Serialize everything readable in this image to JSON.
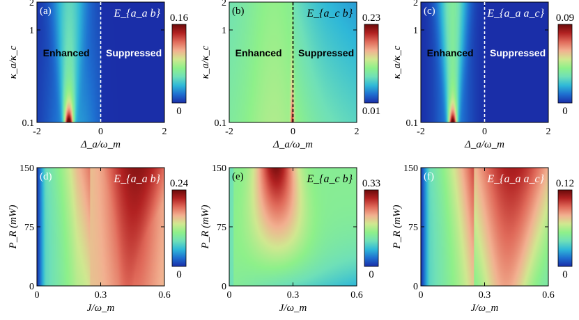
{
  "colormap": [
    "#1a2ea8",
    "#1e6fd0",
    "#2fb8d8",
    "#6fe0b8",
    "#8ef08a",
    "#d0e890",
    "#f2b090",
    "#e06a5a",
    "#b22222",
    "#6a0a0a"
  ],
  "chart_data": [
    {
      "id": "a",
      "type": "heatmap",
      "panel_label": "(a)",
      "title": "E_{a_a b}",
      "xlabel": "Δ_a/ω_m",
      "ylabel": "κ_a/κ_c",
      "xlim": [
        -2,
        2
      ],
      "ylim": [
        0.1,
        2
      ],
      "yscale": "log",
      "xticks": [
        "-2",
        "0",
        "2"
      ],
      "yticks": [
        "0.1",
        "1",
        "2"
      ],
      "colorbar": {
        "max": "0.16",
        "min": "0"
      },
      "divider": {
        "x": 0,
        "style": "dashed",
        "color": "#ffffff"
      },
      "regions": [
        {
          "text": "Enhanced",
          "color": "#000000"
        },
        {
          "text": "Suppressed",
          "color": "#ffffff"
        }
      ],
      "peak": {
        "x": -1.0,
        "y": 0.1,
        "value": 0.16
      }
    },
    {
      "id": "b",
      "type": "heatmap",
      "panel_label": "(b)",
      "title": "E_{a_c b}",
      "xlabel": "Δ_a/ω_m",
      "ylabel": "κ_a/κ_c",
      "xlim": [
        -2,
        2
      ],
      "ylim": [
        0.1,
        2
      ],
      "yscale": "log",
      "xticks": [
        "-2",
        "0",
        "2"
      ],
      "yticks": [
        "0.1",
        "1",
        "2"
      ],
      "colorbar": {
        "max": "0.23",
        "min": "0.01"
      },
      "divider": {
        "x": 0,
        "style": "dashed",
        "color": "#000000"
      },
      "regions": [
        {
          "text": "Enhanced",
          "color": "#000000"
        },
        {
          "text": "Suppressed",
          "color": "#000000"
        }
      ],
      "peak": {
        "x": 0.0,
        "y": 0.1,
        "value": 0.23
      }
    },
    {
      "id": "c",
      "type": "heatmap",
      "panel_label": "(c)",
      "title": "E_{a_a a_c}",
      "xlabel": "Δ_a/ω_m",
      "ylabel": "κ_a/κ_c",
      "xlim": [
        -2,
        2
      ],
      "ylim": [
        0.1,
        2
      ],
      "yscale": "log",
      "xticks": [
        "-2",
        "0",
        "2"
      ],
      "yticks": [
        "0.1",
        "1",
        "2"
      ],
      "colorbar": {
        "max": "0.09",
        "min": "0"
      },
      "divider": {
        "x": 0,
        "style": "dashed",
        "color": "#ffffff"
      },
      "regions": [
        {
          "text": "Enhanced",
          "color": "#000000"
        },
        {
          "text": "Suppressed",
          "color": "#ffffff"
        }
      ],
      "peak": {
        "x": -1.0,
        "y": 0.1,
        "value": 0.09
      }
    },
    {
      "id": "d",
      "type": "heatmap",
      "panel_label": "(d)",
      "title": "E_{a_a b}",
      "xlabel": "J/ω_m",
      "ylabel": "P_R (mW)",
      "xlim": [
        0,
        0.6
      ],
      "ylim": [
        0,
        150
      ],
      "xticks": [
        "0",
        "0.3",
        "0.6"
      ],
      "yticks": [
        "0",
        "75",
        "150"
      ],
      "colorbar": {
        "max": "0.24",
        "min": "0"
      },
      "peak": {
        "x": 0.45,
        "y": 120,
        "value": 0.24
      }
    },
    {
      "id": "e",
      "type": "heatmap",
      "panel_label": "(e)",
      "title": "E_{a_c b}",
      "xlabel": "J/ω_m",
      "ylabel": "P_R (mW)",
      "xlim": [
        0,
        0.6
      ],
      "ylim": [
        0,
        150
      ],
      "xticks": [
        "0",
        "0.3",
        "0.6"
      ],
      "yticks": [
        "0",
        "75",
        "150"
      ],
      "colorbar": {
        "max": "0.33",
        "min": "0"
      },
      "peak": {
        "x": 0.23,
        "y": 150,
        "value": 0.33
      }
    },
    {
      "id": "f",
      "type": "heatmap",
      "panel_label": "(f)",
      "title": "E_{a_a a_c}",
      "xlabel": "J/ω_m",
      "ylabel": "P_R (mW)",
      "xlim": [
        0,
        0.6
      ],
      "ylim": [
        0,
        150
      ],
      "xticks": [
        "0",
        "0.3",
        "0.6"
      ],
      "yticks": [
        "0",
        "75",
        "150"
      ],
      "colorbar": {
        "max": "0.12",
        "min": "0"
      },
      "peak": {
        "x": 0.4,
        "y": 110,
        "value": 0.12
      }
    }
  ]
}
